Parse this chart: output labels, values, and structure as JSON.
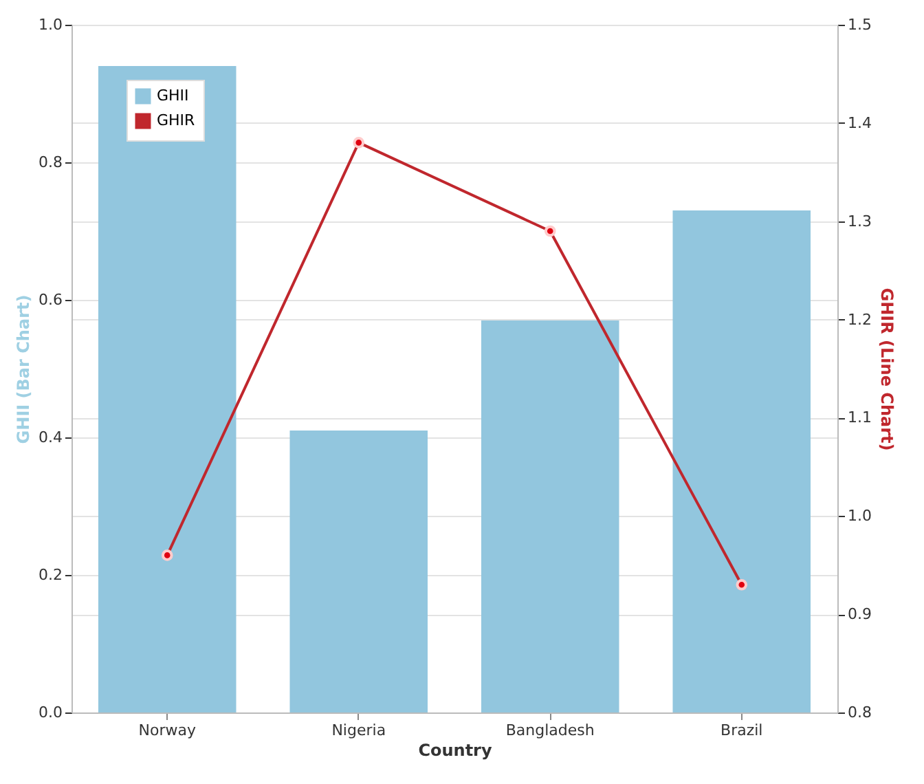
{
  "chart_data": {
    "type": "bar",
    "xlabel": "Country",
    "ylabel": "GHII (Bar Chart)",
    "y2label": "GHIR (Line Chart)",
    "categories": [
      "Norway",
      "Nigeria",
      "Bangladesh",
      "Brazil"
    ],
    "series": [
      {
        "name": "GHII",
        "color": "#92c6de",
        "values": [
          0.94,
          0.41,
          0.57,
          0.73
        ]
      },
      {
        "name": "GHIR",
        "type": "line",
        "axis": "y2",
        "color": "#c0272d",
        "marker": "circle",
        "values": [
          0.96,
          1.38,
          1.29,
          0.93
        ]
      }
    ],
    "ylim": [
      0,
      1
    ],
    "yticks": [
      {
        "value": 0,
        "label": "0.0"
      },
      0.2,
      0.4,
      0.6,
      0.8,
      {
        "value": 1,
        "label": "1.0"
      }
    ],
    "y2lim": [
      0.8,
      1.5
    ],
    "y2ticks": [
      0.8,
      0.9,
      {
        "value": 1,
        "label": "1.0"
      },
      1.1,
      1.2,
      1.3,
      1.4,
      1.5
    ],
    "grid": "y",
    "legend": "top left"
  }
}
